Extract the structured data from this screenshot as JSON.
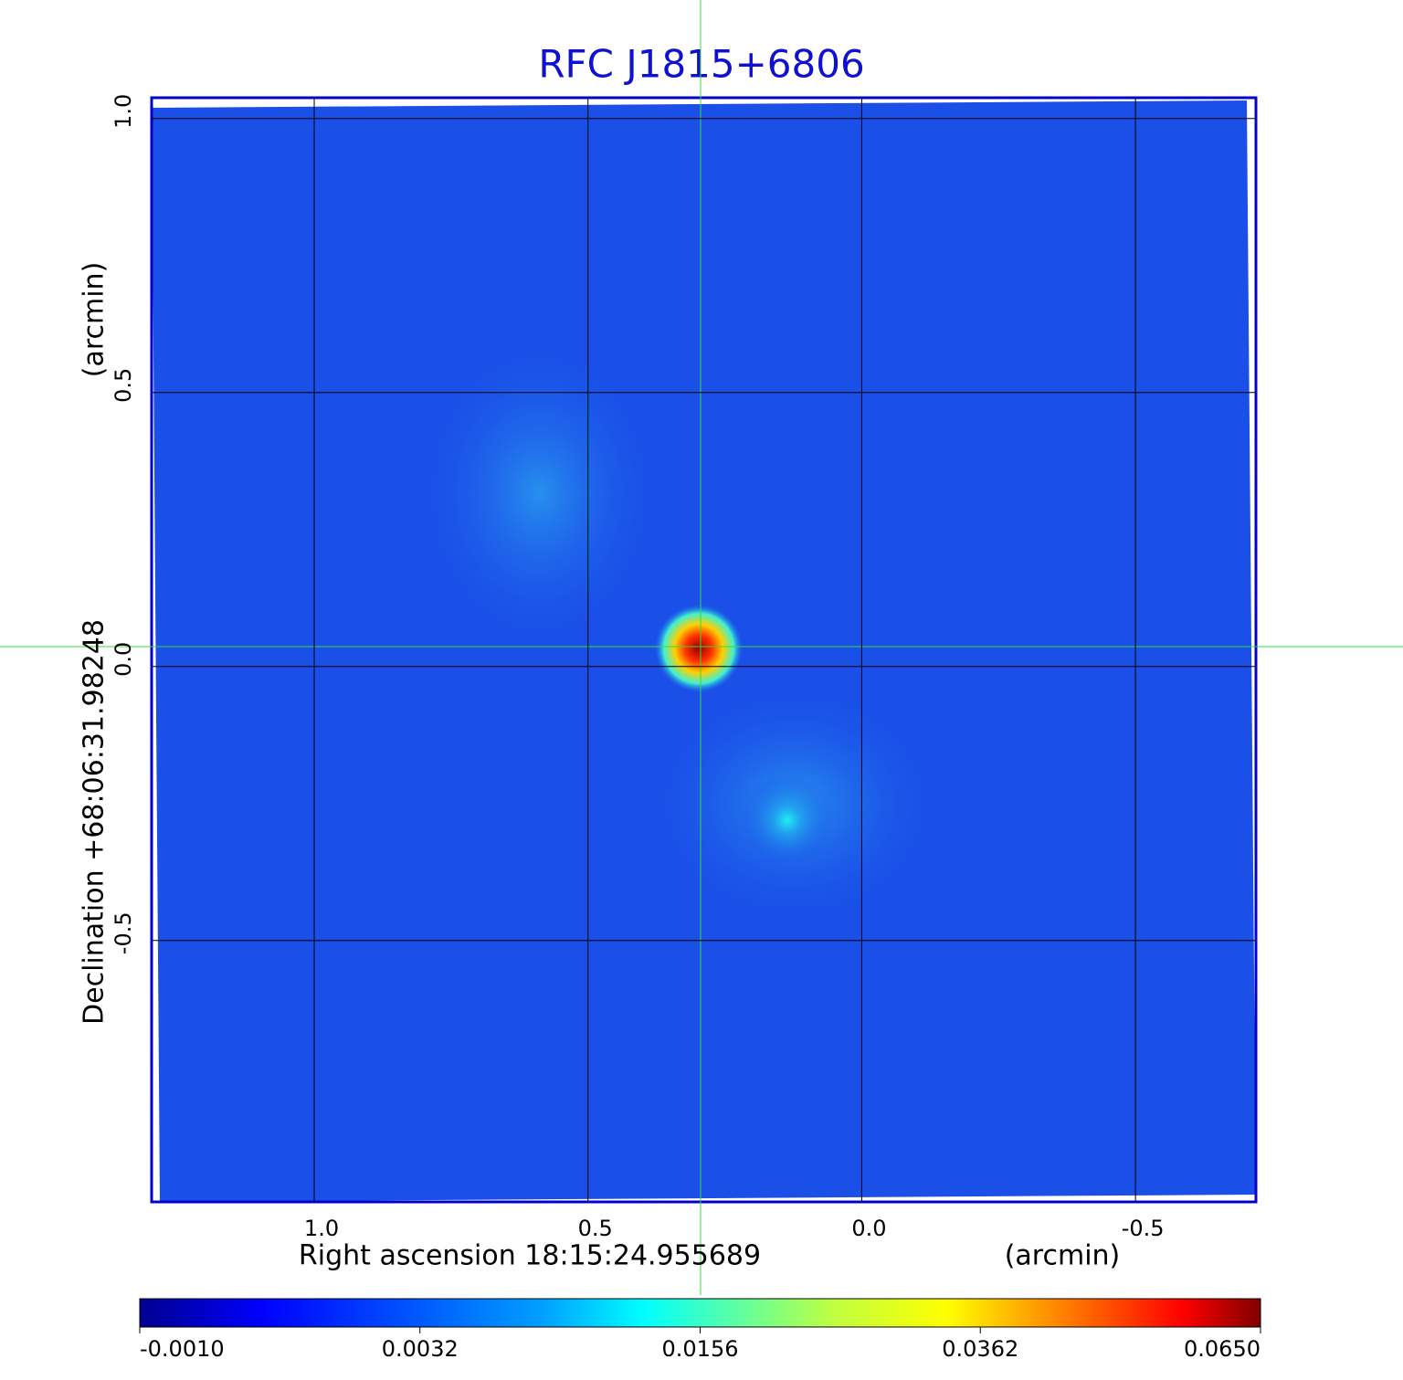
{
  "chart_data": {
    "type": "image",
    "title": "RFC J1815+6806",
    "x_label": "Right ascension  18:15:24.955689",
    "x_unit": "(arcmin)",
    "y_label": "Declination  +68:06:31.98248",
    "y_unit": "(arcmin)",
    "xlim": [
      1.297,
      -0.72
    ],
    "ylim": [
      -0.977,
      1.038
    ],
    "xticks": [
      {
        "value": 1.0,
        "label": "1.0"
      },
      0.5,
      {
        "value": 0.0,
        "label": "0.0"
      },
      -0.5
    ],
    "yticks": [
      {
        "value": 1.0,
        "label": "1.0"
      },
      0.5,
      {
        "value": 0.0,
        "label": "0.0"
      },
      -0.5
    ],
    "grid": true,
    "colorbar_ticks": [
      {
        "value": -0.001,
        "label": "-0.0010"
      },
      {
        "value": 0.0032,
        "label": "0.0032"
      },
      {
        "value": 0.0156,
        "label": "0.0156"
      },
      {
        "value": 0.0362,
        "label": "0.0362"
      },
      {
        "value": 0.065,
        "label": "0.0650"
      }
    ]
  }
}
